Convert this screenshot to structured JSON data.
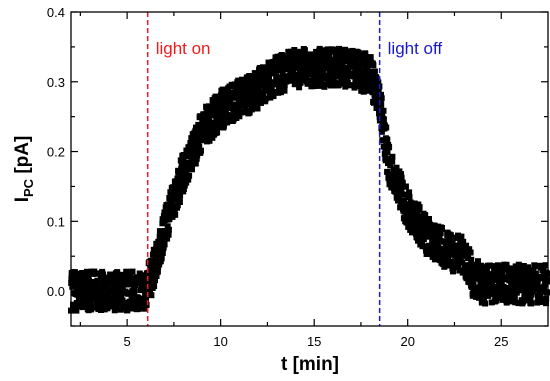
{
  "chart_data": {
    "type": "scatter",
    "xlabel": "t [min]",
    "ylabel_main": "I",
    "ylabel_sub": "PC",
    "ylabel_unit": " [pA]",
    "xlim": [
      2,
      27.5
    ],
    "ylim": [
      -0.05,
      0.4
    ],
    "x_ticks": [
      5,
      10,
      15,
      20,
      25
    ],
    "x_tick_labels": [
      "5",
      "10",
      "15",
      "20",
      "25"
    ],
    "y_ticks": [
      0.0,
      0.1,
      0.2,
      0.3,
      0.4
    ],
    "y_tick_labels": [
      "0.0",
      "0.1",
      "0.2",
      "0.3",
      "0.4"
    ],
    "marker_color": "#000000",
    "annotations": [
      {
        "label": "light on",
        "x": 6.1,
        "color": "#ee1c1c"
      },
      {
        "label": "light off",
        "x": 18.5,
        "color": "#1a1acc"
      }
    ],
    "trend": [
      {
        "x": 2.0,
        "y": 0.0
      },
      {
        "x": 5.9,
        "y": 0.0
      },
      {
        "x": 6.3,
        "y": 0.02
      },
      {
        "x": 7.0,
        "y": 0.09
      },
      {
        "x": 8.0,
        "y": 0.17
      },
      {
        "x": 9.0,
        "y": 0.23
      },
      {
        "x": 10.0,
        "y": 0.26
      },
      {
        "x": 11.0,
        "y": 0.275
      },
      {
        "x": 12.0,
        "y": 0.29
      },
      {
        "x": 13.0,
        "y": 0.31
      },
      {
        "x": 14.0,
        "y": 0.32
      },
      {
        "x": 15.0,
        "y": 0.32
      },
      {
        "x": 16.0,
        "y": 0.32
      },
      {
        "x": 17.0,
        "y": 0.32
      },
      {
        "x": 18.0,
        "y": 0.31
      },
      {
        "x": 18.5,
        "y": 0.27
      },
      {
        "x": 19.0,
        "y": 0.18
      },
      {
        "x": 20.0,
        "y": 0.12
      },
      {
        "x": 21.0,
        "y": 0.08
      },
      {
        "x": 22.0,
        "y": 0.06
      },
      {
        "x": 23.0,
        "y": 0.05
      },
      {
        "x": 23.5,
        "y": 0.02
      },
      {
        "x": 24.0,
        "y": 0.01
      },
      {
        "x": 25.0,
        "y": 0.01
      },
      {
        "x": 27.5,
        "y": 0.01
      }
    ],
    "noise_amplitude": 0.028
  }
}
